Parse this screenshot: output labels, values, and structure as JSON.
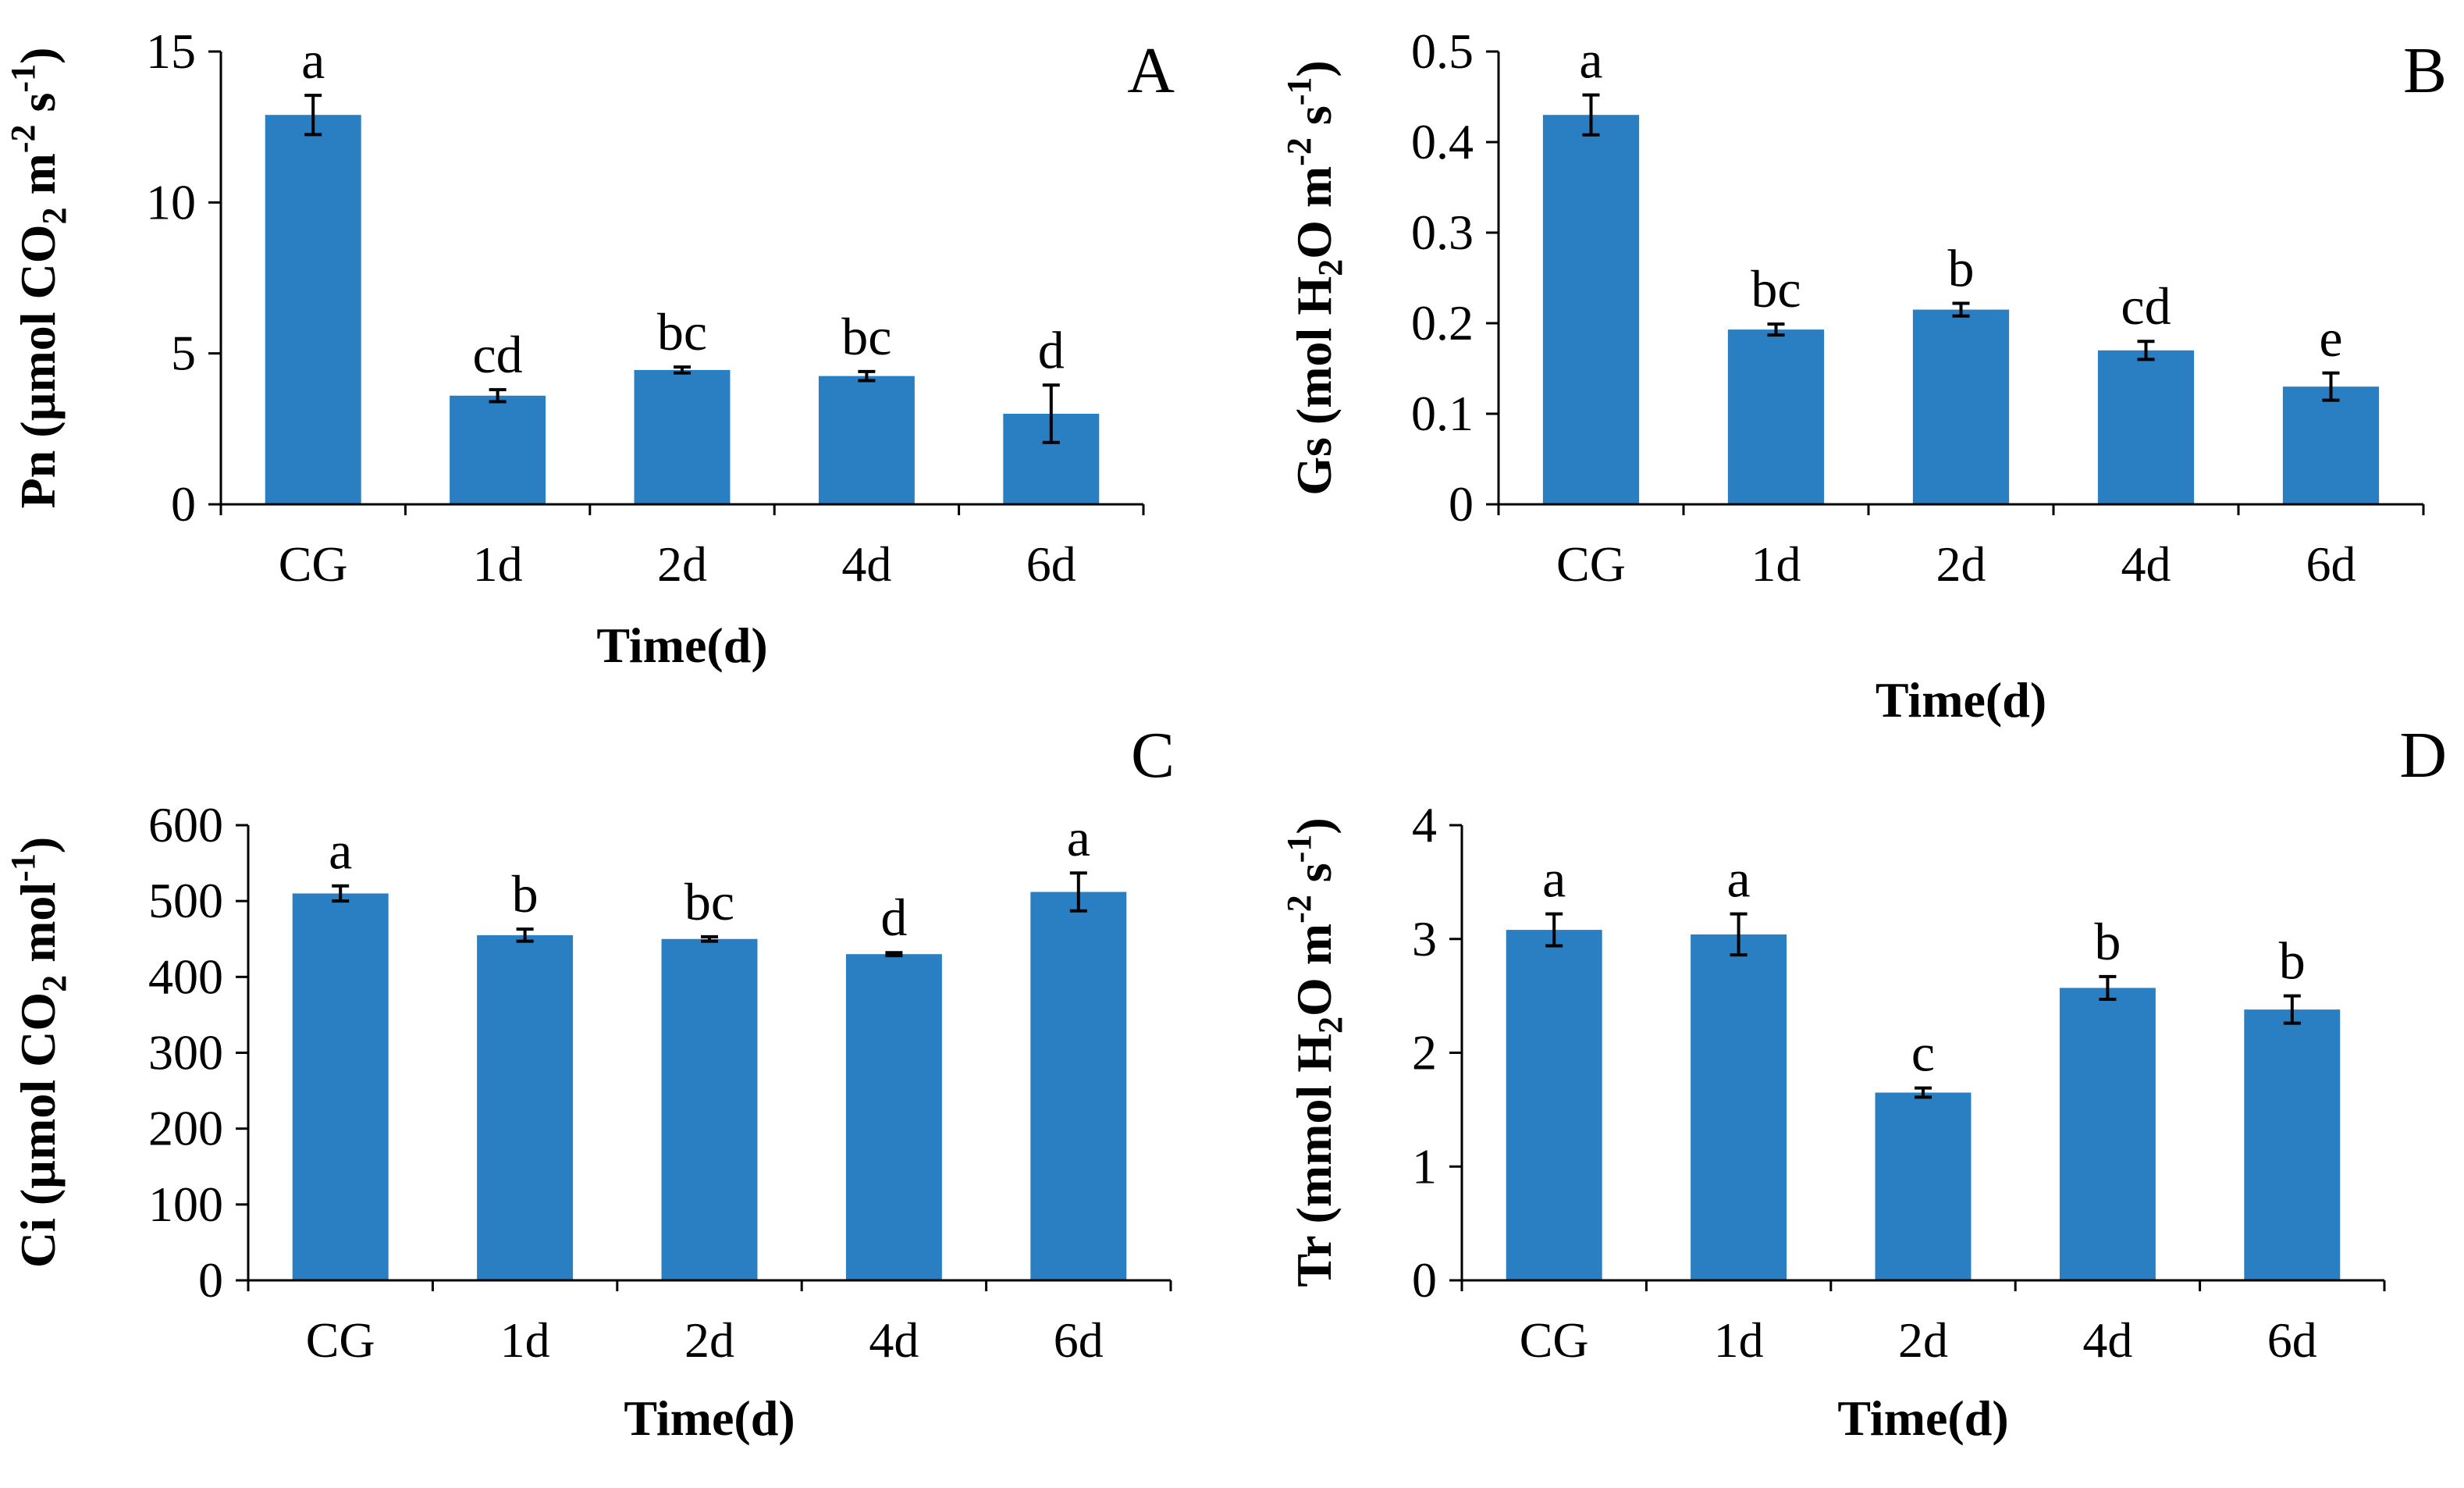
{
  "colors": {
    "bar": "#2A7EC2",
    "axis": "#000000",
    "text": "#000000"
  },
  "chart_data": [
    {
      "id": "A",
      "type": "bar",
      "panel_label": "A",
      "categories": [
        "CG",
        "1d",
        "2d",
        "4d",
        "6d"
      ],
      "values": [
        12.9,
        3.6,
        4.45,
        4.25,
        3.0
      ],
      "errors": [
        0.65,
        0.2,
        0.1,
        0.15,
        0.95
      ],
      "significance": [
        "a",
        "cd",
        "bc",
        "bc",
        "d"
      ],
      "xlabel": "Time(d)",
      "ylabel": [
        {
          "t": "Pn (µmol CO"
        },
        {
          "t": "2",
          "s": "sub"
        },
        {
          "t": " m"
        },
        {
          "t": "-2",
          "s": "sup"
        },
        {
          "t": " s"
        },
        {
          "t": "-1",
          "s": "sup"
        },
        {
          "t": ")"
        }
      ],
      "ylim": [
        0,
        15
      ],
      "yticks": [
        0,
        5,
        10,
        15
      ],
      "ytick_labels": [
        "0",
        "5",
        "10",
        "15"
      ]
    },
    {
      "id": "B",
      "type": "bar",
      "panel_label": "B",
      "categories": [
        "CG",
        "1d",
        "2d",
        "4d",
        "6d"
      ],
      "values": [
        0.43,
        0.193,
        0.215,
        0.17,
        0.13
      ],
      "errors": [
        0.022,
        0.006,
        0.007,
        0.01,
        0.015
      ],
      "significance": [
        "a",
        "bc",
        "b",
        "cd",
        "e"
      ],
      "xlabel": "Time(d)",
      "ylabel": [
        {
          "t": "Gs (mol H"
        },
        {
          "t": "2",
          "s": "sub"
        },
        {
          "t": "O m"
        },
        {
          "t": "-2",
          "s": "sup"
        },
        {
          "t": " s"
        },
        {
          "t": "-1",
          "s": "sup"
        },
        {
          "t": ")"
        }
      ],
      "ylim": [
        0,
        0.5
      ],
      "yticks": [
        0,
        0.1,
        0.2,
        0.3,
        0.4,
        0.5
      ],
      "ytick_labels": [
        "0",
        "0.1",
        "0.2",
        "0.3",
        "0.4",
        "0.5"
      ]
    },
    {
      "id": "C",
      "type": "bar",
      "panel_label": "C",
      "categories": [
        "CG",
        "1d",
        "2d",
        "4d",
        "6d"
      ],
      "values": [
        510,
        455,
        450,
        430,
        512
      ],
      "errors": [
        10,
        8,
        3,
        2,
        25
      ],
      "significance": [
        "a",
        "b",
        "bc",
        "d",
        "a"
      ],
      "xlabel": "Time(d)",
      "ylabel": [
        {
          "t": "Ci (µmol CO"
        },
        {
          "t": "2",
          "s": "sub"
        },
        {
          "t": " mol"
        },
        {
          "t": "-1",
          "s": "sup"
        },
        {
          "t": ")"
        }
      ],
      "ylim": [
        0,
        600
      ],
      "yticks": [
        0,
        100,
        200,
        300,
        400,
        500,
        600
      ],
      "ytick_labels": [
        "0",
        "100",
        "200",
        "300",
        "400",
        "500",
        "600"
      ]
    },
    {
      "id": "D",
      "type": "bar",
      "panel_label": "D",
      "categories": [
        "CG",
        "1d",
        "2d",
        "4d",
        "6d"
      ],
      "values": [
        3.08,
        3.04,
        1.65,
        2.57,
        2.38
      ],
      "errors": [
        0.14,
        0.18,
        0.04,
        0.1,
        0.12
      ],
      "significance": [
        "a",
        "a",
        "c",
        "b",
        "b"
      ],
      "xlabel": "Time(d)",
      "ylabel": [
        {
          "t": "Tr (mmol H"
        },
        {
          "t": "2",
          "s": "sub"
        },
        {
          "t": "O m"
        },
        {
          "t": "-2",
          "s": "sup"
        },
        {
          "t": " s"
        },
        {
          "t": "-1",
          "s": "sup"
        },
        {
          "t": ")"
        }
      ],
      "ylim": [
        0,
        4
      ],
      "yticks": [
        0,
        1,
        2,
        3,
        4
      ],
      "ytick_labels": [
        "0",
        "1",
        "2",
        "3",
        "4"
      ]
    }
  ]
}
